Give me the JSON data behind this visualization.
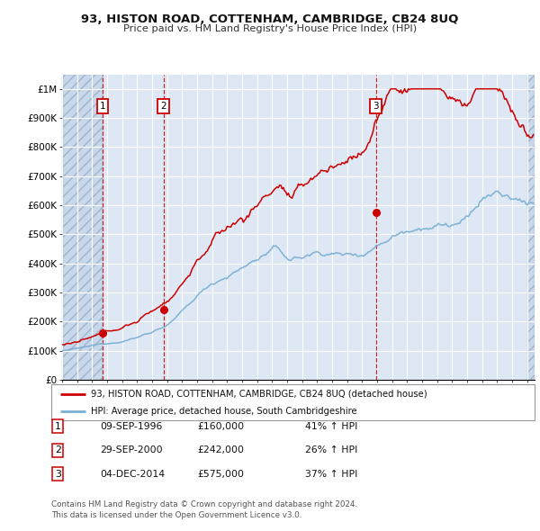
{
  "title_line1": "93, HISTON ROAD, COTTENHAM, CAMBRIDGE, CB24 8UQ",
  "title_line2": "Price paid vs. HM Land Registry's House Price Index (HPI)",
  "legend_line1": "93, HISTON ROAD, COTTENHAM, CAMBRIDGE, CB24 8UQ (detached house)",
  "legend_line2": "HPI: Average price, detached house, South Cambridgeshire",
  "purchases": [
    {
      "label": "1",
      "date_str": "09-SEP-1996",
      "date_x": 1996.69,
      "price": 160000,
      "note": "41% ↑ HPI"
    },
    {
      "label": "2",
      "date_str": "29-SEP-2000",
      "date_x": 2000.75,
      "price": 242000,
      "note": "26% ↑ HPI"
    },
    {
      "label": "3",
      "date_str": "04-DEC-2014",
      "date_x": 2014.92,
      "price": 575000,
      "note": "37% ↑ HPI"
    }
  ],
  "footer": "Contains HM Land Registry data © Crown copyright and database right 2024.\nThis data is licensed under the Open Government Licence v3.0.",
  "property_color": "#cc0000",
  "hpi_color": "#7aafd4",
  "vline_color": "#cc0000",
  "bg_color": "#dde8f4",
  "grid_color": "#ffffff",
  "ylim": [
    0,
    1050000
  ],
  "xlim": [
    1994.0,
    2025.5
  ],
  "yticks": [
    0,
    100000,
    200000,
    300000,
    400000,
    500000,
    600000,
    700000,
    800000,
    900000,
    1000000
  ],
  "ytick_labels": [
    "£0",
    "£100K",
    "£200K",
    "£300K",
    "£400K",
    "£500K",
    "£600K",
    "£700K",
    "£800K",
    "£900K",
    "£1M"
  ],
  "xticks": [
    1994,
    1995,
    1996,
    1997,
    1998,
    1999,
    2000,
    2001,
    2002,
    2003,
    2004,
    2005,
    2006,
    2007,
    2008,
    2009,
    2010,
    2011,
    2012,
    2013,
    2014,
    2015,
    2016,
    2017,
    2018,
    2019,
    2020,
    2021,
    2022,
    2023,
    2024,
    2025
  ]
}
